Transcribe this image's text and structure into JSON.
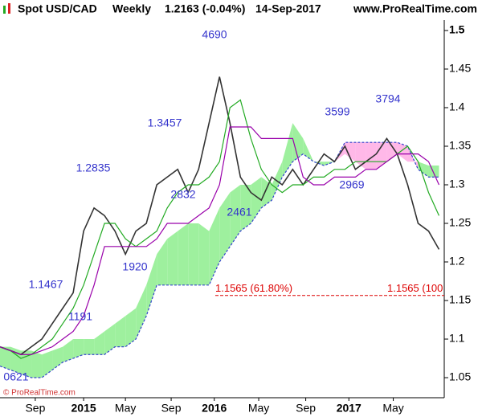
{
  "header": {
    "instrument": "Spot USD/CAD",
    "period": "Weekly",
    "last": "1.2163 (-0.04%)",
    "date": "14-Sep-2017",
    "site": "www.ProRealTime.com"
  },
  "footer": "© ProRealTime.com",
  "chart_data": {
    "type": "line",
    "x": [
      0,
      4,
      8,
      12,
      16,
      20,
      24,
      28,
      32,
      36,
      40,
      44,
      48,
      52,
      56,
      60,
      64,
      68,
      72,
      76,
      80,
      84,
      88,
      92,
      96,
      100,
      104,
      108,
      112,
      116,
      120,
      124,
      128,
      132,
      136,
      140,
      144,
      148,
      152,
      156,
      160,
      164,
      168
    ],
    "xlim": [
      0,
      170
    ],
    "xticks": [
      {
        "value": 13.5,
        "label": "Sep"
      },
      {
        "value": 32,
        "label": "2015"
      },
      {
        "value": 48,
        "label": "May"
      },
      {
        "value": 65.5,
        "label": "Sep"
      },
      {
        "value": 82,
        "label": "2016"
      },
      {
        "value": 99,
        "label": "May"
      },
      {
        "value": 117,
        "label": "Sep"
      },
      {
        "value": 133.5,
        "label": "2017"
      },
      {
        "value": 150.5,
        "label": "May"
      }
    ],
    "ylim": [
      1.024,
      1.5135
    ],
    "yticks": [
      1.5,
      1.45,
      1.4,
      1.35,
      1.3,
      1.25,
      1.2,
      1.15,
      1.1,
      1.05
    ],
    "series": [
      {
        "color": "#333333",
        "values": [
          1.09,
          1.085,
          1.08,
          1.09,
          1.1,
          1.12,
          1.14,
          1.16,
          1.24,
          1.27,
          1.26,
          1.24,
          1.21,
          1.24,
          1.25,
          1.3,
          1.31,
          1.32,
          1.29,
          1.32,
          1.38,
          1.44,
          1.38,
          1.31,
          1.29,
          1.28,
          1.31,
          1.3,
          1.32,
          1.3,
          1.32,
          1.34,
          1.33,
          1.35,
          1.32,
          1.33,
          1.34,
          1.36,
          1.34,
          1.3,
          1.25,
          1.24,
          1.2163
        ]
      },
      {
        "color": "#22aa22",
        "values": [
          1.09,
          1.085,
          1.075,
          1.08,
          1.09,
          1.1,
          1.12,
          1.14,
          1.17,
          1.21,
          1.25,
          1.25,
          1.23,
          1.22,
          1.23,
          1.24,
          1.27,
          1.29,
          1.3,
          1.3,
          1.31,
          1.33,
          1.4,
          1.41,
          1.36,
          1.32,
          1.3,
          1.29,
          1.3,
          1.3,
          1.31,
          1.31,
          1.32,
          1.32,
          1.33,
          1.33,
          1.33,
          1.33,
          1.34,
          1.35,
          1.33,
          1.29,
          1.26
        ]
      },
      {
        "color": "#9900aa",
        "values": [
          1.09,
          1.085,
          1.08,
          1.08,
          1.085,
          1.09,
          1.1,
          1.11,
          1.13,
          1.17,
          1.22,
          1.22,
          1.22,
          1.22,
          1.22,
          1.23,
          1.25,
          1.25,
          1.25,
          1.26,
          1.27,
          1.3,
          1.375,
          1.375,
          1.375,
          1.36,
          1.36,
          1.36,
          1.36,
          1.31,
          1.3,
          1.3,
          1.31,
          1.31,
          1.31,
          1.32,
          1.32,
          1.33,
          1.34,
          1.34,
          1.34,
          1.33,
          1.3
        ]
      }
    ],
    "cloud": {
      "up_color": "#9ef09e",
      "down_color": "#ffb8e8",
      "line_color": "#3344cc",
      "span_a": [
        1.09,
        1.09,
        1.085,
        1.085,
        1.08,
        1.085,
        1.09,
        1.1,
        1.1,
        1.1,
        1.11,
        1.12,
        1.13,
        1.14,
        1.17,
        1.21,
        1.23,
        1.24,
        1.25,
        1.25,
        1.24,
        1.27,
        1.29,
        1.3,
        1.3,
        1.31,
        1.3,
        1.33,
        1.38,
        1.36,
        1.33,
        1.33,
        1.33,
        1.34,
        1.33,
        1.32,
        1.32,
        1.33,
        1.34,
        1.33,
        1.33,
        1.325,
        1.325
      ],
      "span_b": [
        1.065,
        1.06,
        1.055,
        1.05,
        1.05,
        1.06,
        1.07,
        1.075,
        1.08,
        1.08,
        1.08,
        1.09,
        1.09,
        1.1,
        1.13,
        1.17,
        1.17,
        1.17,
        1.17,
        1.17,
        1.17,
        1.2,
        1.22,
        1.24,
        1.25,
        1.27,
        1.28,
        1.31,
        1.33,
        1.34,
        1.33,
        1.325,
        1.33,
        1.355,
        1.355,
        1.355,
        1.355,
        1.355,
        1.355,
        1.35,
        1.32,
        1.31,
        1.31
      ]
    },
    "hline": {
      "value": 1.1565,
      "color": "#dd0000",
      "labels": [
        "1.1565 (61.80%)",
        "1.1565 (100"
      ]
    },
    "annotations": [
      "4690",
      "1.3457",
      "1.2835",
      "3599",
      "3794",
      "2969",
      "2461",
      "2832",
      "1920",
      "1.1467",
      "1191",
      "0621"
    ],
    "annotation_color": "#3333cc"
  }
}
